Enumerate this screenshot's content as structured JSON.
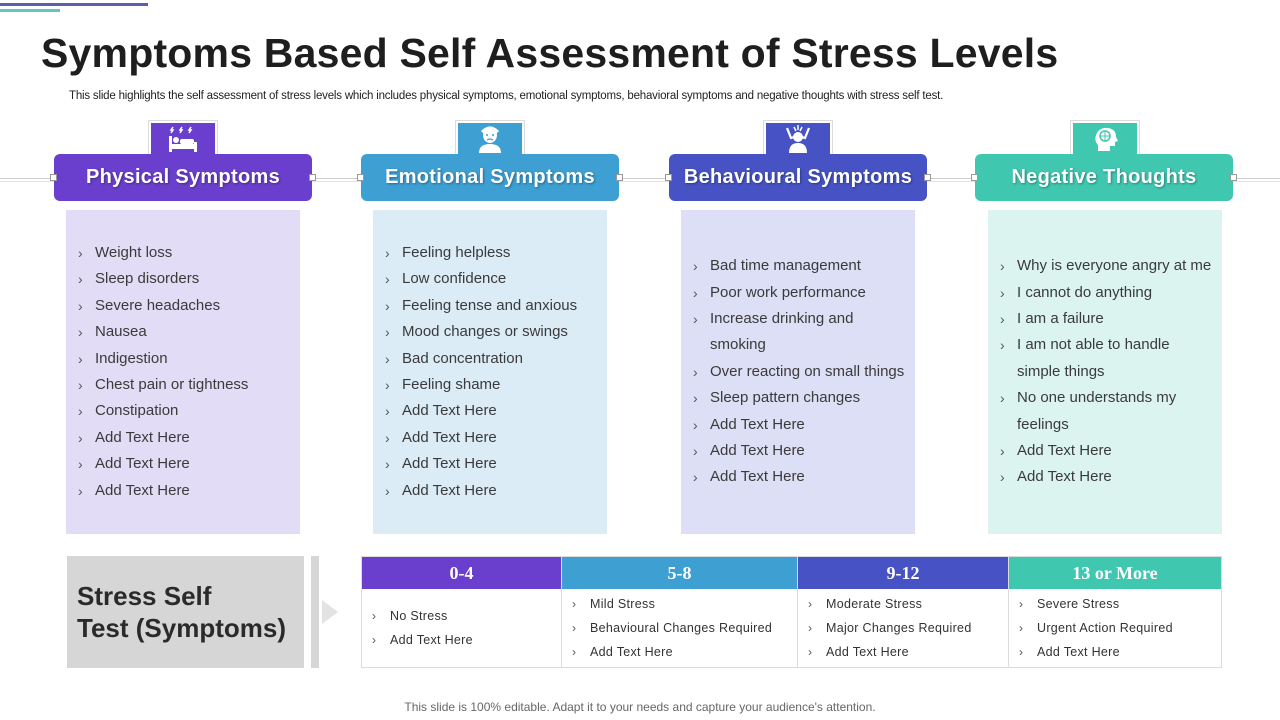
{
  "title": "Symptoms Based Self Assessment of Stress Levels",
  "subtitle": "This slide highlights the self assessment of stress levels which includes physical symptoms, emotional symptoms, behavioral symptoms and negative thoughts with stress self test.",
  "colors": {
    "physical": "#6a3fcd",
    "emotional": "#3d9fd2",
    "behavioural": "#4753c4",
    "negative": "#3fc7b0",
    "physical_card": "#e3dcf6",
    "emotional_card": "#dbecf7",
    "behavioural_card": "#dcdff5",
    "negative_card": "#dcf4ef"
  },
  "categories": [
    {
      "heading": "Physical Symptoms",
      "icon": "bed-icon",
      "items": [
        "Weight loss",
        "Sleep disorders",
        "Severe headaches",
        "Nausea",
        "Indigestion",
        "Chest pain or tightness",
        "Constipation",
        "Add Text Here",
        "Add Text Here",
        "Add Text Here"
      ]
    },
    {
      "heading": "Emotional Symptoms",
      "icon": "sad-person-icon",
      "items": [
        "Feeling helpless",
        "Low confidence",
        "Feeling tense and anxious",
        "Mood changes or swings",
        "Bad concentration",
        "Feeling shame",
        "Add Text Here",
        "Add Text Here",
        "Add Text Here",
        "Add Text Here"
      ]
    },
    {
      "heading": "Behavioural Symptoms",
      "icon": "stressed-person-icon",
      "items": [
        "Bad time management",
        "Poor work performance",
        "Increase drinking and smoking",
        "Over reacting on small things",
        "Sleep pattern changes",
        "Add Text Here",
        "Add Text Here",
        "Add Text Here"
      ]
    },
    {
      "heading": "Negative Thoughts",
      "icon": "head-brain-icon",
      "items": [
        "Why is everyone angry at me",
        "I cannot do anything",
        "I am a failure",
        "I am not able to handle simple things",
        "No one understands my feelings",
        "Add Text Here",
        "Add Text Here"
      ]
    }
  ],
  "stress_test": {
    "label_line1": "Stress Self",
    "label_line2": "Test (Symptoms)",
    "columns": [
      {
        "range": "0-4",
        "items": [
          "No Stress",
          "Add Text Here"
        ]
      },
      {
        "range": "5-8",
        "items": [
          "Mild Stress",
          "Behavioural  Changes Required",
          "Add Text Here"
        ]
      },
      {
        "range": "9-12",
        "items": [
          "Moderate  Stress",
          "Major Changes Required",
          "Add Text Here"
        ]
      },
      {
        "range": "13 or More",
        "items": [
          "Severe  Stress",
          "Urgent Action Required",
          "Add Text Here"
        ]
      }
    ]
  },
  "footer": "This slide is 100% editable. Adapt it to your needs and capture your audience's attention."
}
